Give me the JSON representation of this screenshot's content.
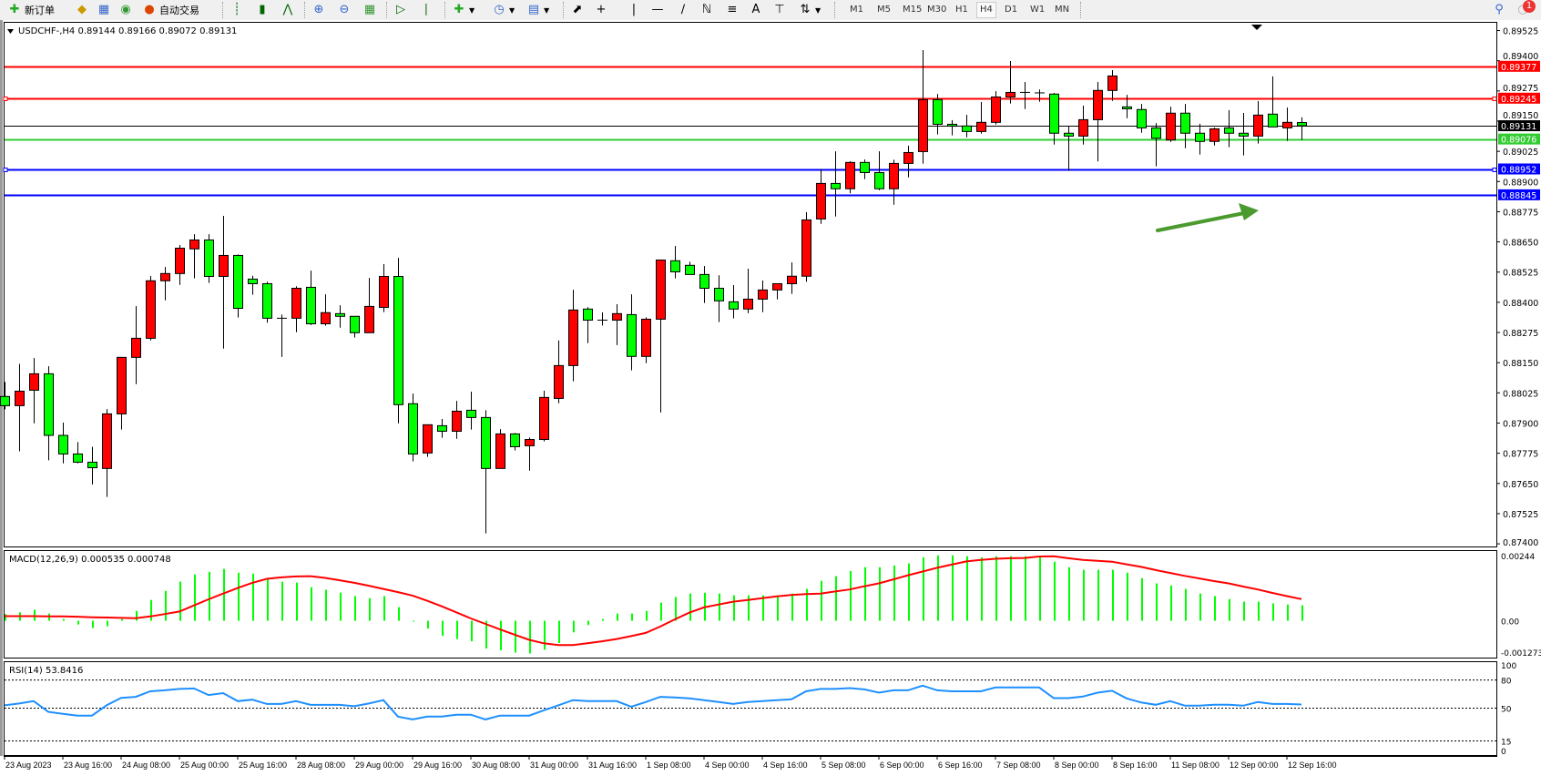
{
  "toolbar": {
    "new_order": "新订单",
    "auto_trading": "自动交易",
    "timeframes": [
      "M1",
      "M5",
      "M15",
      "M30",
      "H1",
      "H4",
      "D1",
      "W1",
      "MN"
    ],
    "active_timeframe": "H4",
    "notification_count": "1",
    "icons": [
      "new-order-icon",
      "market-watch-icon",
      "data-window-icon",
      "signals-icon",
      "auto-trading-icon",
      "bar-chart-icon",
      "candlestick-icon",
      "line-chart-icon",
      "zoom-in-icon",
      "zoom-out-icon",
      "tile-windows-icon",
      "auto-scroll-icon",
      "chart-shift-icon",
      "indicators-icon",
      "periods-icon",
      "templates-icon",
      "cursor-icon",
      "crosshair-icon",
      "vertical-line-icon",
      "horizontal-line-icon",
      "trendline-icon",
      "equidistant-channel-icon",
      "fibonacci-icon",
      "text-icon",
      "text-label-icon",
      "arrows-icon",
      "search-icon",
      "notification-icon"
    ]
  },
  "chart": {
    "header": "USDCHF-,H4  0.89144 0.89166 0.89072 0.89131",
    "candle_colors": {
      "up": "#ff0000",
      "down": "#00ff00",
      "outline": "#000000"
    },
    "price_ticks": [
      "0.89525",
      "0.89400",
      "0.89275",
      "0.89150",
      "0.89025",
      "0.88900",
      "0.88775",
      "0.88650",
      "0.88525",
      "0.88400",
      "0.88275",
      "0.88150",
      "0.88025",
      "0.87900",
      "0.87775",
      "0.87650",
      "0.87525",
      "0.87400"
    ],
    "levels": [
      {
        "price": 0.89377,
        "label": "0.89377",
        "color": "#ff0000",
        "handles": false
      },
      {
        "price": 0.89245,
        "label": "0.89245",
        "color": "#ff0000",
        "handles": true
      },
      {
        "price": 0.89131,
        "label": "0.89131",
        "color": "#000000",
        "handles": false
      },
      {
        "price": 0.89076,
        "label": "0.89076",
        "color": "#33cc33",
        "handles": false
      },
      {
        "price": 0.88952,
        "label": "0.88952",
        "color": "#0000ff",
        "handles": true
      },
      {
        "price": 0.88845,
        "label": "0.88845",
        "color": "#0000ff",
        "handles": false
      }
    ],
    "arrow_color": "#4a9a2e",
    "time_labels": [
      "23 Aug 2023",
      "23 Aug 16:00",
      "24 Aug 08:00",
      "25 Aug 00:00",
      "25 Aug 16:00",
      "28 Aug 08:00",
      "29 Aug 00:00",
      "29 Aug 16:00",
      "30 Aug 08:00",
      "31 Aug 00:00",
      "31 Aug 16:00",
      "1 Sep 08:00",
      "4 Sep 00:00",
      "4 Sep 16:00",
      "5 Sep 08:00",
      "6 Sep 00:00",
      "6 Sep 16:00",
      "7 Sep 08:00",
      "8 Sep 00:00",
      "8 Sep 16:00",
      "11 Sep 08:00",
      "12 Sep 00:00",
      "12 Sep 16:00"
    ]
  },
  "chart_data": [
    {
      "type": "candlestick",
      "symbol": "USDCHF-",
      "timeframe": "H4",
      "ylim": [
        0.87389,
        0.89561
      ],
      "ohlc_fields": [
        "open",
        "high",
        "low",
        "close"
      ],
      "ohlc": [
        [
          0.8801,
          0.8807,
          0.87957,
          0.87972
        ],
        [
          0.87972,
          0.88145,
          0.87783,
          0.88032
        ],
        [
          0.88036,
          0.88169,
          0.87899,
          0.88104
        ],
        [
          0.88104,
          0.88135,
          0.87746,
          0.87849
        ],
        [
          0.87849,
          0.87902,
          0.87733,
          0.87772
        ],
        [
          0.87772,
          0.87821,
          0.87733,
          0.87738
        ],
        [
          0.87738,
          0.87802,
          0.87646,
          0.87715
        ],
        [
          0.87712,
          0.87958,
          0.87594,
          0.87938
        ],
        [
          0.87938,
          0.88172,
          0.87873,
          0.88172
        ],
        [
          0.88172,
          0.88384,
          0.88061,
          0.88251
        ],
        [
          0.88251,
          0.88509,
          0.88242,
          0.88489
        ],
        [
          0.88489,
          0.88546,
          0.88408,
          0.88519
        ],
        [
          0.88519,
          0.88637,
          0.88472,
          0.88624
        ],
        [
          0.88621,
          0.88682,
          0.88499,
          0.88658
        ],
        [
          0.88658,
          0.88682,
          0.8848,
          0.88507
        ],
        [
          0.88507,
          0.88758,
          0.88208,
          0.88594
        ],
        [
          0.88594,
          0.88598,
          0.88337,
          0.88375
        ],
        [
          0.88496,
          0.8851,
          0.88431,
          0.88477
        ],
        [
          0.88477,
          0.88485,
          0.88315,
          0.88334
        ],
        [
          0.88334,
          0.88349,
          0.88174,
          0.88334
        ],
        [
          0.88334,
          0.88466,
          0.88276,
          0.88458
        ],
        [
          0.88462,
          0.88531,
          0.88306,
          0.88311
        ],
        [
          0.88311,
          0.88433,
          0.88303,
          0.88357
        ],
        [
          0.88353,
          0.88388,
          0.88295,
          0.88342
        ],
        [
          0.88342,
          0.88342,
          0.88254,
          0.88274
        ],
        [
          0.88274,
          0.88501,
          0.88274,
          0.88383
        ],
        [
          0.88379,
          0.88558,
          0.88359,
          0.88507
        ],
        [
          0.88507,
          0.88584,
          0.87899,
          0.87976
        ],
        [
          0.8798,
          0.88022,
          0.87741,
          0.87772
        ],
        [
          0.87776,
          0.87893,
          0.8776,
          0.87893
        ],
        [
          0.87889,
          0.87917,
          0.87839,
          0.87866
        ],
        [
          0.87866,
          0.87992,
          0.87835,
          0.87949
        ],
        [
          0.87953,
          0.8803,
          0.87873,
          0.87923
        ],
        [
          0.87923,
          0.87953,
          0.87443,
          0.87712
        ],
        [
          0.87712,
          0.87875,
          0.87712,
          0.87855
        ],
        [
          0.87855,
          0.87859,
          0.87787,
          0.87802
        ],
        [
          0.87806,
          0.8784,
          0.87703,
          0.87832
        ],
        [
          0.87832,
          0.88034,
          0.87824,
          0.88006
        ],
        [
          0.88002,
          0.88242,
          0.87982,
          0.88138
        ],
        [
          0.88138,
          0.88452,
          0.88073,
          0.88368
        ],
        [
          0.88372,
          0.8838,
          0.88231,
          0.88326
        ],
        [
          0.88326,
          0.88358,
          0.88304,
          0.88326
        ],
        [
          0.88326,
          0.88392,
          0.88223,
          0.88353
        ],
        [
          0.88349,
          0.88433,
          0.88118,
          0.88176
        ],
        [
          0.88176,
          0.88338,
          0.88148,
          0.8833
        ],
        [
          0.8833,
          0.88575,
          0.87944,
          0.88575
        ],
        [
          0.88572,
          0.88633,
          0.88499,
          0.88526
        ],
        [
          0.88553,
          0.88568,
          0.88515,
          0.88515
        ],
        [
          0.88515,
          0.8855,
          0.88397,
          0.88458
        ],
        [
          0.88458,
          0.88512,
          0.88318,
          0.88406
        ],
        [
          0.88402,
          0.88471,
          0.88333,
          0.88372
        ],
        [
          0.88372,
          0.88539,
          0.88355,
          0.88413
        ],
        [
          0.88413,
          0.8849,
          0.88359,
          0.88451
        ],
        [
          0.88451,
          0.88477,
          0.88412,
          0.88477
        ],
        [
          0.88477,
          0.88565,
          0.88435,
          0.88508
        ],
        [
          0.88508,
          0.88773,
          0.88485,
          0.88741
        ],
        [
          0.88745,
          0.88951,
          0.88725,
          0.88892
        ],
        [
          0.88892,
          0.89025,
          0.88755,
          0.8887
        ],
        [
          0.8887,
          0.88984,
          0.88851,
          0.88979
        ],
        [
          0.88979,
          0.88991,
          0.8891,
          0.88937
        ],
        [
          0.88937,
          0.89025,
          0.88864,
          0.8887
        ],
        [
          0.8887,
          0.8899,
          0.88804,
          0.88975
        ],
        [
          0.88975,
          0.89048,
          0.88917,
          0.8902
        ],
        [
          0.89024,
          0.89444,
          0.88974,
          0.89239
        ],
        [
          0.89239,
          0.89262,
          0.89095,
          0.89137
        ],
        [
          0.89137,
          0.89154,
          0.89091,
          0.89131
        ],
        [
          0.8913,
          0.89176,
          0.89083,
          0.89107
        ],
        [
          0.89107,
          0.89229,
          0.89098,
          0.89145
        ],
        [
          0.89145,
          0.89274,
          0.89136,
          0.8925
        ],
        [
          0.8925,
          0.89399,
          0.89223,
          0.89269
        ],
        [
          0.89269,
          0.89312,
          0.892,
          0.89269
        ],
        [
          0.89267,
          0.89281,
          0.8923,
          0.89267
        ],
        [
          0.89262,
          0.89267,
          0.89053,
          0.891
        ],
        [
          0.891,
          0.8913,
          0.88944,
          0.89088
        ],
        [
          0.89088,
          0.89214,
          0.89053,
          0.89156
        ],
        [
          0.89156,
          0.89312,
          0.88983,
          0.89277
        ],
        [
          0.89277,
          0.89361,
          0.89234,
          0.89337
        ],
        [
          0.89209,
          0.89259,
          0.89162,
          0.89201
        ],
        [
          0.89198,
          0.89221,
          0.89102,
          0.89122
        ],
        [
          0.89122,
          0.89142,
          0.88963,
          0.89079
        ],
        [
          0.89072,
          0.8921,
          0.89064,
          0.89183
        ],
        [
          0.89183,
          0.89221,
          0.89038,
          0.891
        ],
        [
          0.891,
          0.89139,
          0.89012,
          0.89066
        ],
        [
          0.89066,
          0.89123,
          0.89049,
          0.89118
        ],
        [
          0.89122,
          0.89195,
          0.89042,
          0.891
        ],
        [
          0.891,
          0.89184,
          0.89008,
          0.89088
        ],
        [
          0.89088,
          0.89233,
          0.89057,
          0.89175
        ],
        [
          0.89179,
          0.89335,
          0.89126,
          0.89126
        ],
        [
          0.89122,
          0.89206,
          0.89068,
          0.89145
        ],
        [
          0.89144,
          0.89166,
          0.89072,
          0.89131
        ]
      ]
    },
    {
      "type": "bar",
      "title": "MACD(12,26,9) 0.000535 0.000748",
      "ylim": [
        -0.001273,
        0.00244
      ],
      "tick_labels": [
        "0.00244",
        "0.00",
        "-0.001273"
      ],
      "series": [
        {
          "name": "MACD",
          "kind": "bar",
          "color": "#00ff00",
          "values": [
            0.00023,
            0.00029,
            0.00038,
            0.00025,
            6e-05,
            -0.00013,
            -0.00025,
            -0.00019,
            6e-05,
            0.00034,
            0.00072,
            0.00103,
            0.00135,
            0.0016,
            0.00169,
            0.00179,
            0.00166,
            0.00163,
            0.00144,
            0.00135,
            0.00132,
            0.00116,
            0.00107,
            0.00097,
            0.00085,
            0.00078,
            0.00085,
            0.00047,
            -2e-05,
            -0.00027,
            -0.00052,
            -0.00063,
            -0.00071,
            -0.00096,
            -0.00102,
            -0.0011,
            -0.00113,
            -0.001,
            -0.00077,
            -0.0004,
            -0.00015,
            6e-05,
            0.00025,
            0.00025,
            0.00034,
            0.00063,
            0.00082,
            0.00094,
            0.00097,
            0.00094,
            0.00088,
            0.00088,
            0.00088,
            0.00088,
            0.00094,
            0.0011,
            0.00138,
            0.00154,
            0.00172,
            0.00185,
            0.00185,
            0.00191,
            0.00198,
            0.00219,
            0.00226,
            0.00226,
            0.00223,
            0.00219,
            0.00223,
            0.00223,
            0.00223,
            0.00219,
            0.00204,
            0.00185,
            0.00176,
            0.00176,
            0.00176,
            0.00166,
            0.00147,
            0.00129,
            0.00122,
            0.0011,
            0.00094,
            0.00085,
            0.00075,
            0.00066,
            0.00066,
            0.0006,
            0.00056,
            0.000535
          ]
        },
        {
          "name": "Signal",
          "kind": "line",
          "color": "#ff0000",
          "values": [
            0.00016,
            0.00016,
            0.00016,
            0.00015,
            0.00015,
            0.00014,
            0.00012,
            0.00011,
            0.0001,
            9e-05,
            0.00015,
            0.00023,
            0.00032,
            0.00053,
            0.00074,
            0.00094,
            0.00113,
            0.00131,
            0.00145,
            0.0015,
            0.00153,
            0.00154,
            0.00148,
            0.0014,
            0.00131,
            0.00121,
            0.0011,
            0.00099,
            0.00087,
            0.00069,
            0.0005,
            0.00029,
            8e-05,
            -0.00011,
            -0.0003,
            -0.00048,
            -0.00066,
            -0.00078,
            -0.00084,
            -0.00084,
            -0.00078,
            -0.00071,
            -0.00063,
            -0.00053,
            -0.00042,
            -0.0002,
            5e-05,
            0.00028,
            0.00046,
            0.00056,
            0.00066,
            0.00072,
            0.00078,
            0.00084,
            0.00089,
            0.00092,
            0.00094,
            0.00101,
            0.00108,
            0.00119,
            0.00129,
            0.00143,
            0.00157,
            0.0017,
            0.00183,
            0.00194,
            0.00205,
            0.0021,
            0.00214,
            0.00216,
            0.00217,
            0.00222,
            0.00223,
            0.00216,
            0.0021,
            0.00207,
            0.00204,
            0.00195,
            0.00186,
            0.00175,
            0.00165,
            0.00155,
            0.00146,
            0.00137,
            0.00129,
            0.00118,
            0.00108,
            0.00096,
            0.00085,
            0.000748
          ]
        }
      ]
    },
    {
      "type": "line",
      "title": "RSI(14) 53.8416",
      "ylim": [
        0,
        100
      ],
      "tick_labels": [
        "100",
        "80",
        "50",
        "15",
        "0"
      ],
      "levels": [
        80,
        50,
        15
      ],
      "series": [
        {
          "name": "RSI(14)",
          "color": "#1e90ff",
          "values": [
            53,
            55,
            57.5,
            46,
            44,
            42,
            42,
            53,
            61,
            62,
            68,
            69,
            70.5,
            71,
            64,
            66,
            57.5,
            59,
            54.5,
            54.5,
            57.5,
            53.5,
            53.5,
            53.5,
            52,
            55,
            58.5,
            41,
            38,
            41,
            41,
            43,
            43,
            38,
            42,
            42,
            42,
            47.7,
            53,
            58.5,
            57.5,
            57.5,
            57.5,
            51.6,
            56.5,
            62,
            61.4,
            60.4,
            58.4,
            56.5,
            54.5,
            56.5,
            57.5,
            58.4,
            59.4,
            68,
            70.5,
            70.5,
            71.4,
            70,
            66.5,
            69,
            69,
            74,
            69,
            68,
            68,
            68,
            72,
            72,
            72,
            72,
            60.7,
            60.7,
            62.3,
            66.5,
            68.5,
            60.4,
            56,
            53.6,
            57.5,
            52.6,
            52.6,
            53.6,
            53.6,
            52.6,
            56.5,
            54.5,
            54.5,
            53.8416
          ]
        }
      ]
    }
  ]
}
